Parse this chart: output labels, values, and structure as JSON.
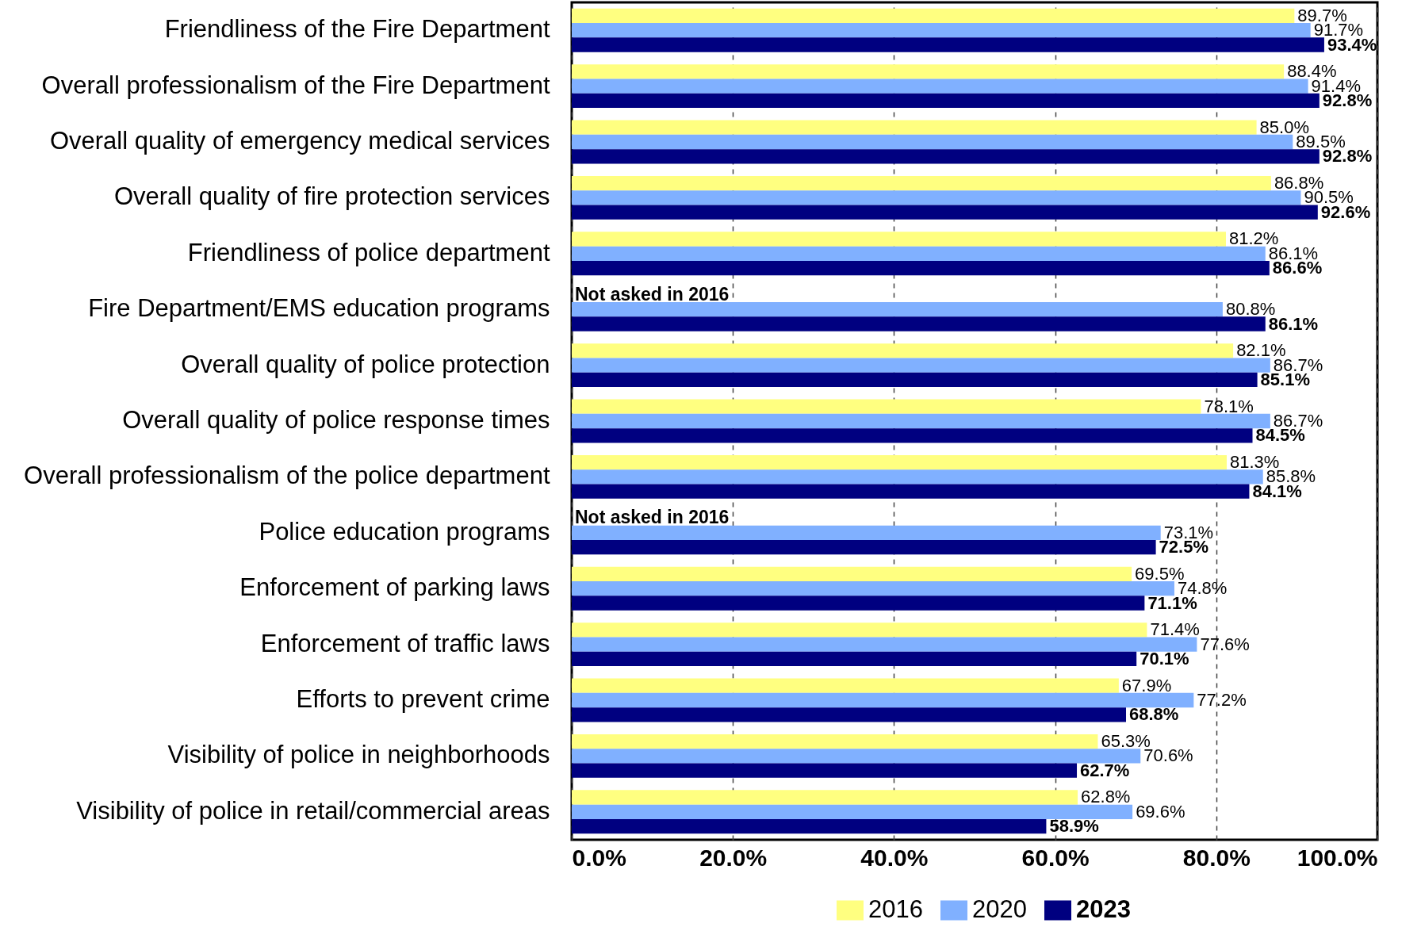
{
  "chart_data": {
    "type": "bar",
    "orientation": "horizontal",
    "categories": [
      "Friendliness of the Fire Department",
      "Overall professionalism of the Fire Department",
      "Overall quality of emergency medical services",
      "Overall quality of fire protection services",
      "Friendliness of police department",
      "Fire Department/EMS education programs",
      "Overall quality of police protection",
      "Overall quality of police response times",
      "Overall professionalism of the police department",
      "Police education programs",
      "Enforcement of parking laws",
      "Enforcement of traffic laws",
      "Efforts to prevent crime",
      "Visibility of police in neighborhoods",
      "Visibility of police in retail/commercial areas"
    ],
    "series": [
      {
        "name": "2016",
        "color": "#ffff80",
        "values": [
          89.7,
          88.4,
          85.0,
          86.8,
          81.2,
          null,
          82.1,
          78.1,
          81.3,
          null,
          69.5,
          71.4,
          67.9,
          65.3,
          62.8
        ],
        "value_labels": [
          "89.7%",
          "88.4%",
          "85.0%",
          "86.8%",
          "81.2%",
          null,
          "82.1%",
          "78.1%",
          "81.3%",
          null,
          "69.5%",
          "71.4%",
          "67.9%",
          "65.3%",
          "62.8%"
        ]
      },
      {
        "name": "2020",
        "color": "#80b0ff",
        "values": [
          91.7,
          91.4,
          89.5,
          90.5,
          86.1,
          80.8,
          86.7,
          86.7,
          85.8,
          73.1,
          74.8,
          77.6,
          77.2,
          70.6,
          69.6
        ],
        "value_labels": [
          "91.7%",
          "91.4%",
          "89.5%",
          "90.5%",
          "86.1%",
          "80.8%",
          "86.7%",
          "86.7%",
          "85.8%",
          "73.1%",
          "74.8%",
          "77.6%",
          "77.2%",
          "70.6%",
          "69.6%"
        ]
      },
      {
        "name": "2023",
        "color": "#000080",
        "values": [
          93.4,
          92.8,
          92.8,
          92.6,
          86.6,
          86.1,
          85.1,
          84.5,
          84.1,
          72.5,
          71.1,
          70.1,
          68.8,
          62.7,
          58.9
        ],
        "value_labels": [
          "93.4%",
          "92.8%",
          "92.8%",
          "92.6%",
          "86.6%",
          "86.1%",
          "85.1%",
          "84.5%",
          "84.1%",
          "72.5%",
          "71.1%",
          "70.1%",
          "68.8%",
          "62.7%",
          "58.9%"
        ]
      }
    ],
    "xlim": [
      0,
      100
    ],
    "xticks": [
      {
        "value": 0,
        "label": "0.0%"
      },
      {
        "value": 20,
        "label": "20.0%"
      },
      {
        "value": 40,
        "label": "40.0%"
      },
      {
        "value": 60,
        "label": "60.0%"
      },
      {
        "value": 80,
        "label": "80.0%"
      },
      {
        "value": 100,
        "label": "100.0%"
      }
    ],
    "grid": "x",
    "legend": "bottom",
    "annotations": [
      {
        "text": "Not asked in 2016",
        "x": 0,
        "y": "Fire Department/EMS education programs"
      },
      {
        "text": "Not asked in 2016",
        "x": 0,
        "y": "Police education programs"
      }
    ]
  }
}
